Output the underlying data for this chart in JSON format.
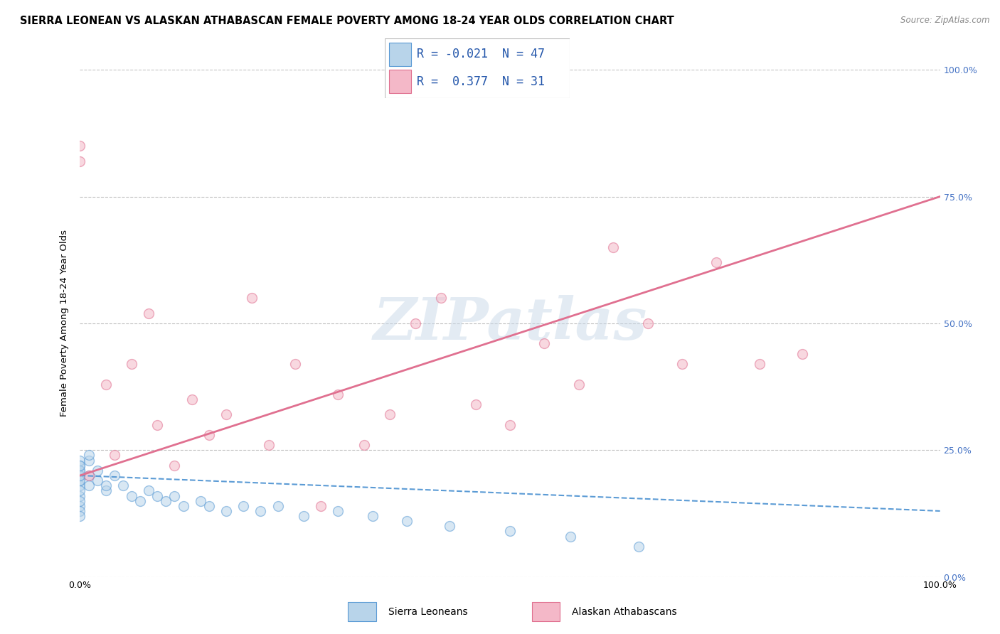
{
  "title": "SIERRA LEONEAN VS ALASKAN ATHABASCAN FEMALE POVERTY AMONG 18-24 YEAR OLDS CORRELATION CHART",
  "source": "Source: ZipAtlas.com",
  "ylabel": "Female Poverty Among 18-24 Year Olds",
  "watermark": "ZIPatlas",
  "legend_entries": [
    {
      "label": "Sierra Leoneans",
      "color": "#b8d4ea",
      "R": -0.021,
      "N": 47,
      "edge": "#5b9bd5"
    },
    {
      "label": "Alaskan Athabascans",
      "color": "#f4b8c8",
      "R": 0.377,
      "N": 31,
      "edge": "#e07090"
    }
  ],
  "blue_scatter_x": [
    0.0,
    0.0,
    0.0,
    0.0,
    0.0,
    0.0,
    0.0,
    0.0,
    0.0,
    0.0,
    0.0,
    0.0,
    0.0,
    0.0,
    0.0,
    0.0,
    0.01,
    0.01,
    0.01,
    0.01,
    0.02,
    0.02,
    0.03,
    0.03,
    0.04,
    0.05,
    0.06,
    0.07,
    0.08,
    0.09,
    0.1,
    0.11,
    0.12,
    0.14,
    0.15,
    0.17,
    0.19,
    0.21,
    0.23,
    0.26,
    0.3,
    0.34,
    0.38,
    0.43,
    0.5,
    0.57,
    0.65
  ],
  "blue_scatter_y": [
    0.16,
    0.18,
    0.19,
    0.2,
    0.21,
    0.22,
    0.23,
    0.14,
    0.15,
    0.17,
    0.19,
    0.2,
    0.13,
    0.12,
    0.21,
    0.22,
    0.23,
    0.24,
    0.2,
    0.18,
    0.19,
    0.21,
    0.17,
    0.18,
    0.2,
    0.18,
    0.16,
    0.15,
    0.17,
    0.16,
    0.15,
    0.16,
    0.14,
    0.15,
    0.14,
    0.13,
    0.14,
    0.13,
    0.14,
    0.12,
    0.13,
    0.12,
    0.11,
    0.1,
    0.09,
    0.08,
    0.06
  ],
  "pink_scatter_x": [
    0.0,
    0.0,
    0.01,
    0.03,
    0.04,
    0.06,
    0.08,
    0.09,
    0.11,
    0.13,
    0.15,
    0.17,
    0.2,
    0.22,
    0.25,
    0.28,
    0.3,
    0.33,
    0.36,
    0.39,
    0.42,
    0.46,
    0.5,
    0.54,
    0.58,
    0.62,
    0.66,
    0.7,
    0.74,
    0.79,
    0.84
  ],
  "pink_scatter_y": [
    0.82,
    0.85,
    0.2,
    0.38,
    0.24,
    0.42,
    0.52,
    0.3,
    0.22,
    0.35,
    0.28,
    0.32,
    0.55,
    0.26,
    0.42,
    0.14,
    0.36,
    0.26,
    0.32,
    0.5,
    0.55,
    0.34,
    0.3,
    0.46,
    0.38,
    0.65,
    0.5,
    0.42,
    0.62,
    0.42,
    0.44
  ],
  "blue_line_x": [
    0.0,
    1.0
  ],
  "blue_line_y": [
    0.2,
    0.13
  ],
  "pink_line_x": [
    0.0,
    1.0
  ],
  "pink_line_y": [
    0.2,
    0.75
  ],
  "xlim": [
    0.0,
    1.0
  ],
  "ylim": [
    0.0,
    1.0
  ],
  "ytick_values": [
    0.0,
    0.25,
    0.5,
    0.75,
    1.0
  ],
  "ytick_labels": [
    "0.0%",
    "25.0%",
    "50.0%",
    "75.0%",
    "100.0%"
  ],
  "bg_color": "#ffffff",
  "scatter_size": 100,
  "scatter_alpha": 0.55,
  "scatter_linewidth": 1.0,
  "title_fontsize": 10.5,
  "axis_label_fontsize": 9.5,
  "tick_fontsize": 9,
  "legend_fontsize": 12
}
